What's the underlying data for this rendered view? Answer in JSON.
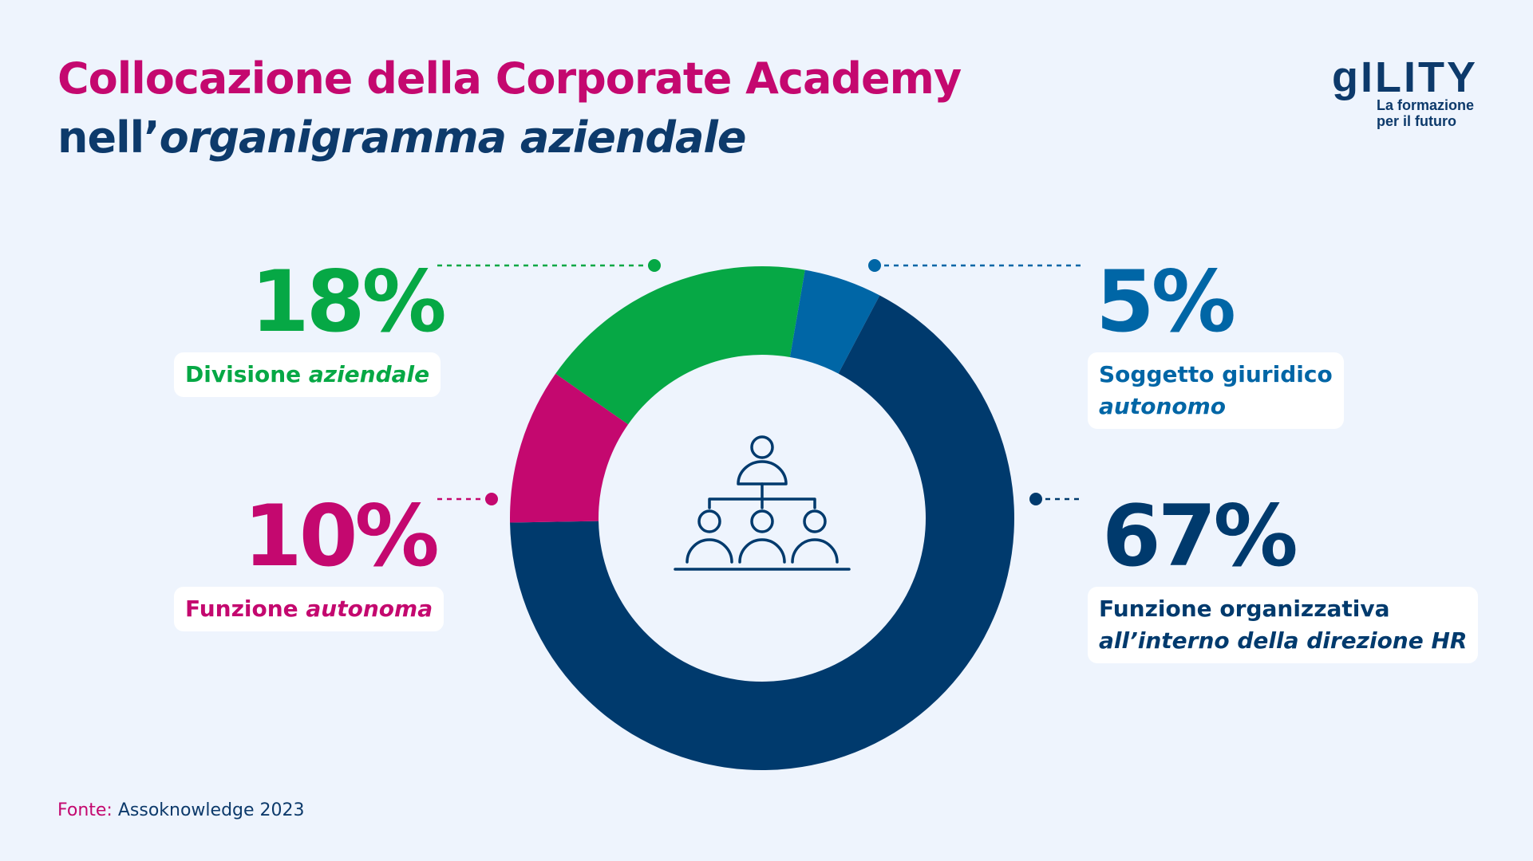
{
  "header": {
    "title_line1": "Collocazione della Corporate Academy",
    "title_line2_prefix": "nell’",
    "title_line2_italic": "organigramma aziendale"
  },
  "logo": {
    "brand": "gILITY",
    "tagline": "La formazione\nper il futuro"
  },
  "colors": {
    "green": "#06a845",
    "blue": "#0066a6",
    "navy": "#003a6d",
    "magenta": "#c4086f",
    "background": "#eef4fd"
  },
  "icon": {
    "center": "org-chart-icon"
  },
  "chart_data": {
    "type": "pie",
    "segments": [
      {
        "label": "Divisione aziendale",
        "value": 18,
        "value_text": "18%",
        "color": "#06a845"
      },
      {
        "label": "Soggetto giuridico autonomo",
        "value": 5,
        "value_text": "5%",
        "color": "#0066a6"
      },
      {
        "label": "Funzione organizzativa all’interno della direzione HR",
        "value": 67,
        "value_text": "67%",
        "color": "#003a6d"
      },
      {
        "label": "Funzione autonoma",
        "value": 10,
        "value_text": "10%",
        "color": "#c4086f"
      }
    ]
  },
  "labels": {
    "divisione": {
      "plain": "Divisione ",
      "italic": "aziendale"
    },
    "soggetto": {
      "line1": "Soggetto giuridico",
      "line2": "autonomo"
    },
    "funzione_autonoma": {
      "plain": "Funzione ",
      "italic": "autonoma"
    },
    "funzione_hr": {
      "line1": "Funzione organizzativa",
      "line2": "all’interno della direzione HR"
    }
  },
  "source": {
    "label": "Fonte:",
    "text": " Assoknowledge 2023"
  }
}
